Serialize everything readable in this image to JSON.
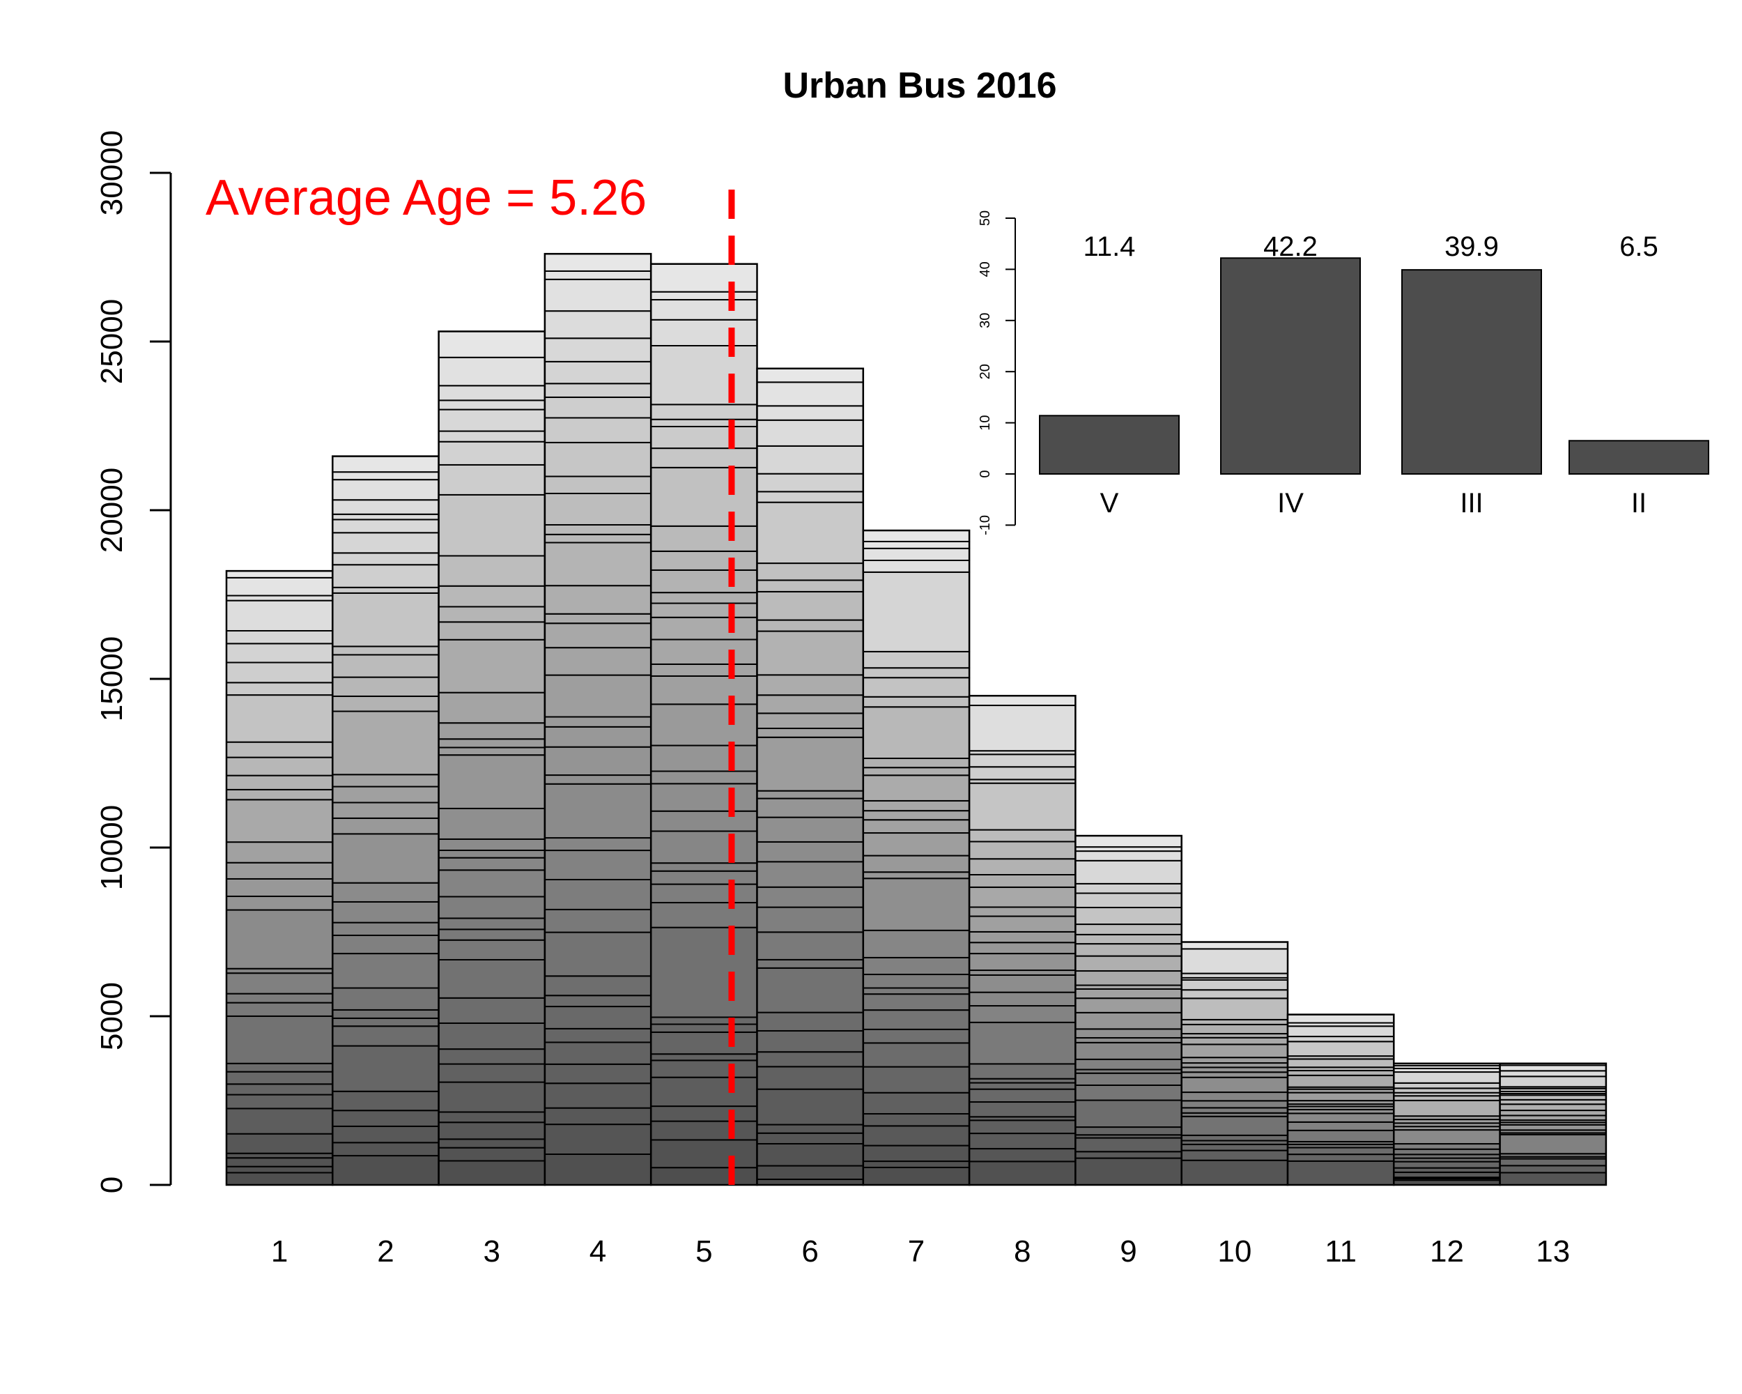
{
  "chart_data": [
    {
      "type": "bar",
      "title": "Urban Bus 2016",
      "xlabel": "",
      "ylabel": "",
      "categories": [
        "1",
        "2",
        "3",
        "4",
        "5",
        "6",
        "7",
        "8",
        "9",
        "10",
        "11",
        "12",
        "13"
      ],
      "values": [
        18200,
        21600,
        25300,
        27600,
        27300,
        24200,
        19400,
        14500,
        10350,
        7200,
        5050,
        3600,
        3600
      ],
      "ylim": [
        0,
        30000
      ],
      "yticks": [
        "0",
        "5000",
        "10000",
        "15000",
        "20000",
        "25000",
        "30000"
      ],
      "stacked_segments": "each bar is stacked from many thin segments shaded from dark grey (bottom) to light grey (top)",
      "annotation": "Average Age = 5.26",
      "average_line": {
        "x": 5.26,
        "color": "#ff0000",
        "style": "dashed"
      },
      "grid": false
    },
    {
      "type": "bar",
      "categories": [
        "V",
        "IV",
        "III",
        "II"
      ],
      "values": [
        11.4,
        42.2,
        39.9,
        6.5
      ],
      "data_labels": [
        "11.4",
        "42.2",
        "39.9",
        "6.5"
      ],
      "ylim": [
        -10,
        50
      ],
      "yticks": [
        "-10",
        "0",
        "10",
        "20",
        "30",
        "40",
        "50"
      ],
      "bar_color": "#4d4d4d",
      "placement": "top-right inset",
      "grid": false
    }
  ],
  "colors": {
    "accent": "#ff0000",
    "bar_dark": "#4d4d4d",
    "bar_light": "#e6e6e6"
  }
}
